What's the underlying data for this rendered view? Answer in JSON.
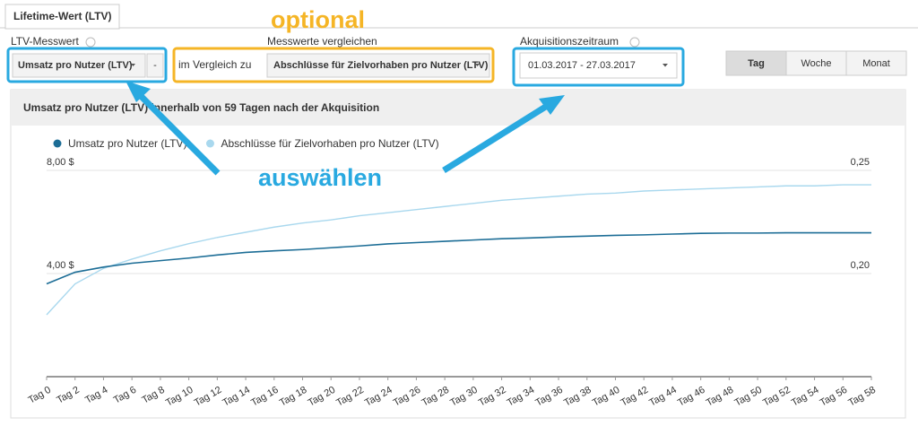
{
  "tab": "Lifetime-Wert (LTV)",
  "annotations": {
    "optional": "optional",
    "select": "auswählen"
  },
  "controls": {
    "metric_label": "LTV-Messwert",
    "metric_value": "Umsatz pro Nutzer (LTV)",
    "metric_extra": "-",
    "compare_label": "Messwerte vergleichen",
    "compare_prefix": "im Vergleich zu",
    "compare_value": "Abschlüsse für Zielvorhaben pro Nutzer (LTV)",
    "range_label": "Akquisitionszeitraum",
    "range_value": "01.03.2017 - 27.03.2017",
    "granularity": [
      "Tag",
      "Woche",
      "Monat"
    ]
  },
  "chart": {
    "type": "line",
    "title": "Umsatz pro Nutzer (LTV) innerhalb von 59 Tagen nach der Akquisition",
    "categories": [
      "Tag 0",
      "Tag 2",
      "Tag 4",
      "Tag 6",
      "Tag 8",
      "Tag 10",
      "Tag 12",
      "Tag 14",
      "Tag 16",
      "Tag 18",
      "Tag 20",
      "Tag 22",
      "Tag 24",
      "Tag 26",
      "Tag 28",
      "Tag 30",
      "Tag 32",
      "Tag 34",
      "Tag 36",
      "Tag 38",
      "Tag 40",
      "Tag 42",
      "Tag 44",
      "Tag 46",
      "Tag 48",
      "Tag 50",
      "Tag 52",
      "Tag 54",
      "Tag 56",
      "Tag 58"
    ],
    "series": [
      {
        "name": "Umsatz pro Nutzer (LTV)",
        "color": "#1c6d96",
        "values": [
          3.6,
          4.05,
          4.25,
          4.4,
          4.5,
          4.6,
          4.72,
          4.82,
          4.88,
          4.93,
          5.0,
          5.07,
          5.15,
          5.2,
          5.25,
          5.3,
          5.35,
          5.38,
          5.42,
          5.45,
          5.48,
          5.5,
          5.53,
          5.56,
          5.57,
          5.57,
          5.58,
          5.58,
          5.58,
          5.58
        ]
      },
      {
        "name": "Abschlüsse für Zielvorhaben pro Nutzer (LTV)",
        "color": "#a9d8ee",
        "axis": "y2",
        "values": [
          0.18,
          0.195,
          0.2025,
          0.207,
          0.211,
          0.2145,
          0.2175,
          0.22,
          0.2225,
          0.2245,
          0.226,
          0.228,
          0.2295,
          0.231,
          0.2325,
          0.234,
          0.2355,
          0.2365,
          0.2375,
          0.2385,
          0.239,
          0.24,
          0.2405,
          0.241,
          0.2415,
          0.242,
          0.2425,
          0.2425,
          0.243,
          0.243
        ]
      }
    ],
    "ylim": [
      0,
      8
    ],
    "yticks": [
      {
        "value": 4,
        "label": "4,00 $"
      },
      {
        "value": 8,
        "label": "8,00 $"
      }
    ],
    "y2lim": [
      0.15,
      0.25
    ],
    "y2ticks": [
      {
        "value": 0.2,
        "label": "0,20"
      },
      {
        "value": 0.25,
        "label": "0,25"
      }
    ],
    "grid": true
  }
}
